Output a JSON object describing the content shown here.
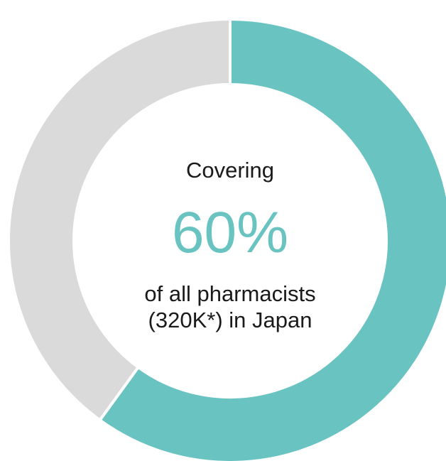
{
  "chart_data": {
    "type": "pie",
    "variant": "donut",
    "slices": [
      {
        "label": "pharmacists covered",
        "value": 60,
        "color": "#68c3c1"
      },
      {
        "label": "remaining",
        "value": 40,
        "color": "#dadada"
      }
    ],
    "start": "top",
    "direction": "clockwise",
    "separator_color": "#ffffff",
    "title": "",
    "legend": "none"
  },
  "center": {
    "caption_top": "Covering",
    "value_text": "60%",
    "value_color": "#68c3c1",
    "caption_line1": "of all pharmacists",
    "caption_line2": "(320K*) in Japan"
  }
}
